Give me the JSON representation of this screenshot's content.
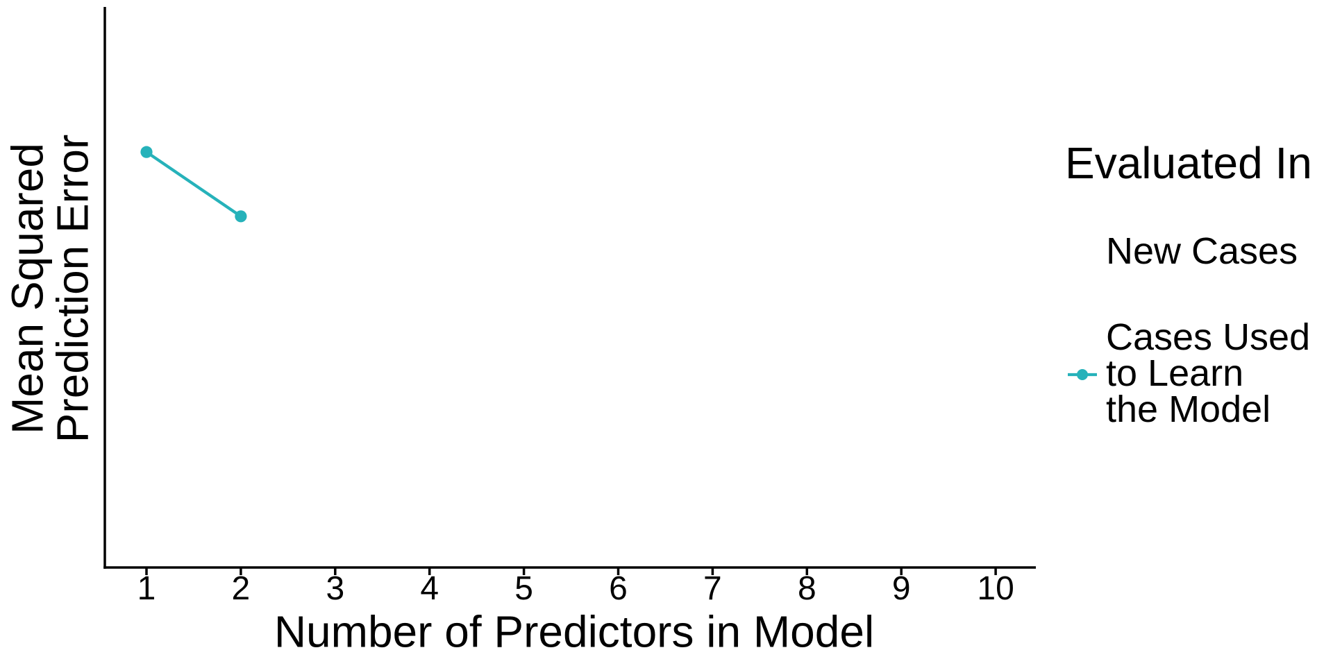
{
  "chart_data": {
    "type": "line",
    "title": "",
    "xlabel": "Number of Predictors in Model",
    "ylabel": "Mean Squared\nPrediction Error",
    "x_ticks": [
      1,
      2,
      3,
      4,
      5,
      6,
      7,
      8,
      9,
      10
    ],
    "xlim": [
      0.57,
      10.46
    ],
    "ylim": [
      0,
      1
    ],
    "y_ticks_shown": false,
    "grid": "off",
    "legend_position": "right",
    "legend_title": "Evaluated In",
    "series": [
      {
        "name": "New Cases",
        "x": [],
        "y": [],
        "color": "#26b2ba",
        "marker": "none"
      },
      {
        "name": "Cases Used to Learn the Model",
        "x": [
          1,
          2
        ],
        "y": [
          0.743,
          0.628
        ],
        "color": "#26b2ba",
        "marker": "circle",
        "style": "solid-line-with-points"
      }
    ]
  },
  "legend": {
    "title": "Evaluated In",
    "items": [
      {
        "label": "New Cases",
        "key": "blank"
      },
      {
        "label": "Cases Used\nto Learn\nthe Model",
        "key": "line-point"
      }
    ]
  },
  "colors": {
    "series_teal": "#26b2ba",
    "axis_black": "#000000",
    "background": "#ffffff"
  }
}
